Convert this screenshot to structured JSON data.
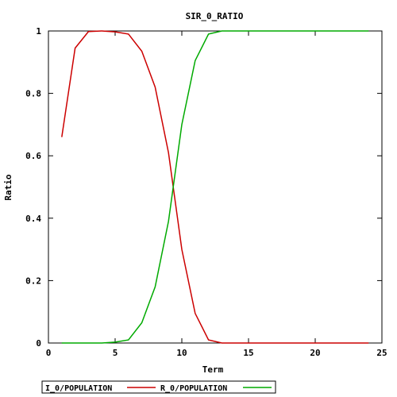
{
  "chart_data": {
    "type": "line",
    "title": "SIR_0_RATIO",
    "xlabel": "Term",
    "ylabel": "Ratio",
    "xlim": [
      0,
      25
    ],
    "ylim": [
      0,
      1
    ],
    "xticks": [
      0,
      5,
      10,
      15,
      20,
      25
    ],
    "yticks": [
      0,
      0.2,
      0.4,
      0.6,
      0.8,
      1
    ],
    "xtick_labels": [
      "0",
      "5",
      "10",
      "15",
      "20",
      "25"
    ],
    "ytick_labels": [
      "0",
      "0.2",
      "0.4",
      "0.6",
      "0.8",
      "1"
    ],
    "grid": false,
    "legend_position": "bottom-left",
    "x": [
      1,
      2,
      3,
      4,
      5,
      6,
      7,
      8,
      9,
      10,
      11,
      12,
      13,
      14,
      15,
      16,
      17,
      18,
      19,
      20,
      21,
      22,
      23,
      24
    ],
    "series": [
      {
        "name": "I_0/POPULATION",
        "color": "#cc0000",
        "values": [
          0.66,
          0.945,
          0.998,
          1.0,
          0.997,
          0.99,
          0.935,
          0.82,
          0.61,
          0.3,
          0.095,
          0.01,
          0.0,
          0.0,
          0.0,
          0.0,
          0.0,
          0.0,
          0.0,
          0.0,
          0.0,
          0.0,
          0.0,
          0.0
        ]
      },
      {
        "name": "R_0/POPULATION",
        "color": "#00aa00",
        "values": [
          0.0,
          0.0,
          0.0,
          0.0,
          0.003,
          0.01,
          0.065,
          0.18,
          0.39,
          0.7,
          0.905,
          0.99,
          1.0,
          1.0,
          1.0,
          1.0,
          1.0,
          1.0,
          1.0,
          1.0,
          1.0,
          1.0,
          1.0,
          1.0
        ]
      }
    ]
  }
}
